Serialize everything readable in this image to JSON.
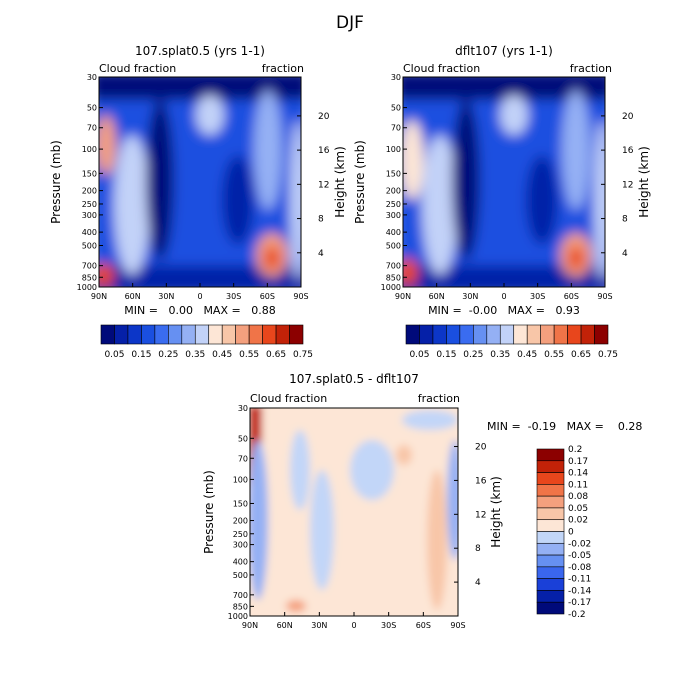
{
  "page_title": "DJF",
  "colors": {
    "contour_scale_abs": [
      "#000a7a",
      "#0520a8",
      "#0c36c8",
      "#1a4fe0",
      "#3a6cf0",
      "#6690f2",
      "#94b0f4",
      "#c2d2f8",
      "#fde6d6",
      "#f8c6a8",
      "#f4a07e",
      "#f07448",
      "#e8461c",
      "#c22208",
      "#8c0000"
    ],
    "contour_scale_diff": [
      "#000a7a",
      "#0520a8",
      "#1a40d8",
      "#3a66ee",
      "#6690f2",
      "#94b0f4",
      "#c2d6f8",
      "#fde6d6",
      "#f8c6a8",
      "#f4a07e",
      "#f07448",
      "#e8461c",
      "#c22208",
      "#8c0000"
    ]
  },
  "chart_data": [
    {
      "id": "p1",
      "type": "heatmap",
      "title": "107.splat0.5 (yrs 1-1)",
      "left_label": "Cloud fraction",
      "right_label": "fraction",
      "xlabel": "",
      "ylabel": "Pressure (mb)",
      "ylabel_right": "Height (km)",
      "x_ticks": [
        "90N",
        "60N",
        "30N",
        "0",
        "30S",
        "60S",
        "90S"
      ],
      "x_values": [
        90,
        60,
        30,
        0,
        -30,
        -60,
        -90
      ],
      "y_ticks": [
        "30",
        "50",
        "70",
        "100",
        "150",
        "200",
        "250",
        "300",
        "400",
        "500",
        "700",
        "850",
        "1000"
      ],
      "y_values": [
        30,
        50,
        70,
        100,
        150,
        200,
        250,
        300,
        400,
        500,
        700,
        850,
        1000
      ],
      "height_ticks": [
        "20",
        "16",
        "12",
        "8",
        "4"
      ],
      "height_values": [
        20,
        16,
        12,
        8,
        4
      ],
      "min_max_text": "MIN =   0.00   MAX =   0.88",
      "min": 0.0,
      "max": 0.88,
      "colorbar_labels": [
        "0.05",
        "0.15",
        "0.25",
        "0.35",
        "0.45",
        "0.55",
        "0.65",
        "0.75"
      ]
    },
    {
      "id": "p2",
      "type": "heatmap",
      "title": "dflt107 (yrs 1-1)",
      "left_label": "Cloud fraction",
      "right_label": "fraction",
      "xlabel": "",
      "ylabel": "Pressure (mb)",
      "ylabel_right": "Height (km)",
      "x_ticks": [
        "90N",
        "60N",
        "30N",
        "0",
        "30S",
        "60S",
        "90S"
      ],
      "x_values": [
        90,
        60,
        30,
        0,
        -30,
        -60,
        -90
      ],
      "y_ticks": [
        "30",
        "50",
        "70",
        "100",
        "150",
        "200",
        "250",
        "300",
        "400",
        "500",
        "700",
        "850",
        "1000"
      ],
      "y_values": [
        30,
        50,
        70,
        100,
        150,
        200,
        250,
        300,
        400,
        500,
        700,
        850,
        1000
      ],
      "height_ticks": [
        "20",
        "16",
        "12",
        "8",
        "4"
      ],
      "height_values": [
        20,
        16,
        12,
        8,
        4
      ],
      "min_max_text": "MIN =  -0.00   MAX =   0.93",
      "min": -0.0,
      "max": 0.93,
      "colorbar_labels": [
        "0.05",
        "0.15",
        "0.25",
        "0.35",
        "0.45",
        "0.55",
        "0.65",
        "0.75"
      ]
    },
    {
      "id": "p3",
      "type": "heatmap",
      "title": "107.splat0.5 - dflt107",
      "left_label": "Cloud fraction",
      "right_label": "fraction",
      "xlabel": "",
      "ylabel": "Pressure (mb)",
      "ylabel_right": "Height (km)",
      "x_ticks": [
        "90N",
        "60N",
        "30N",
        "0",
        "30S",
        "60S",
        "90S"
      ],
      "x_values": [
        90,
        60,
        30,
        0,
        -30,
        -60,
        -90
      ],
      "y_ticks": [
        "30",
        "50",
        "70",
        "100",
        "150",
        "200",
        "250",
        "300",
        "400",
        "500",
        "700",
        "850",
        "1000"
      ],
      "y_values": [
        30,
        50,
        70,
        100,
        150,
        200,
        250,
        300,
        400,
        500,
        700,
        850,
        1000
      ],
      "height_ticks": [
        "20",
        "16",
        "12",
        "8",
        "4"
      ],
      "height_values": [
        20,
        16,
        12,
        8,
        4
      ],
      "min_max_text": "MIN =  -0.19   MAX =    0.28",
      "min": -0.19,
      "max": 0.28,
      "colorbar_labels": [
        "0.2",
        "0.17",
        "0.14",
        "0.11",
        "0.08",
        "0.05",
        "0.02",
        "0",
        "-0.02",
        "-0.05",
        "-0.08",
        "-0.11",
        "-0.14",
        "-0.17",
        "-0.2"
      ]
    }
  ]
}
